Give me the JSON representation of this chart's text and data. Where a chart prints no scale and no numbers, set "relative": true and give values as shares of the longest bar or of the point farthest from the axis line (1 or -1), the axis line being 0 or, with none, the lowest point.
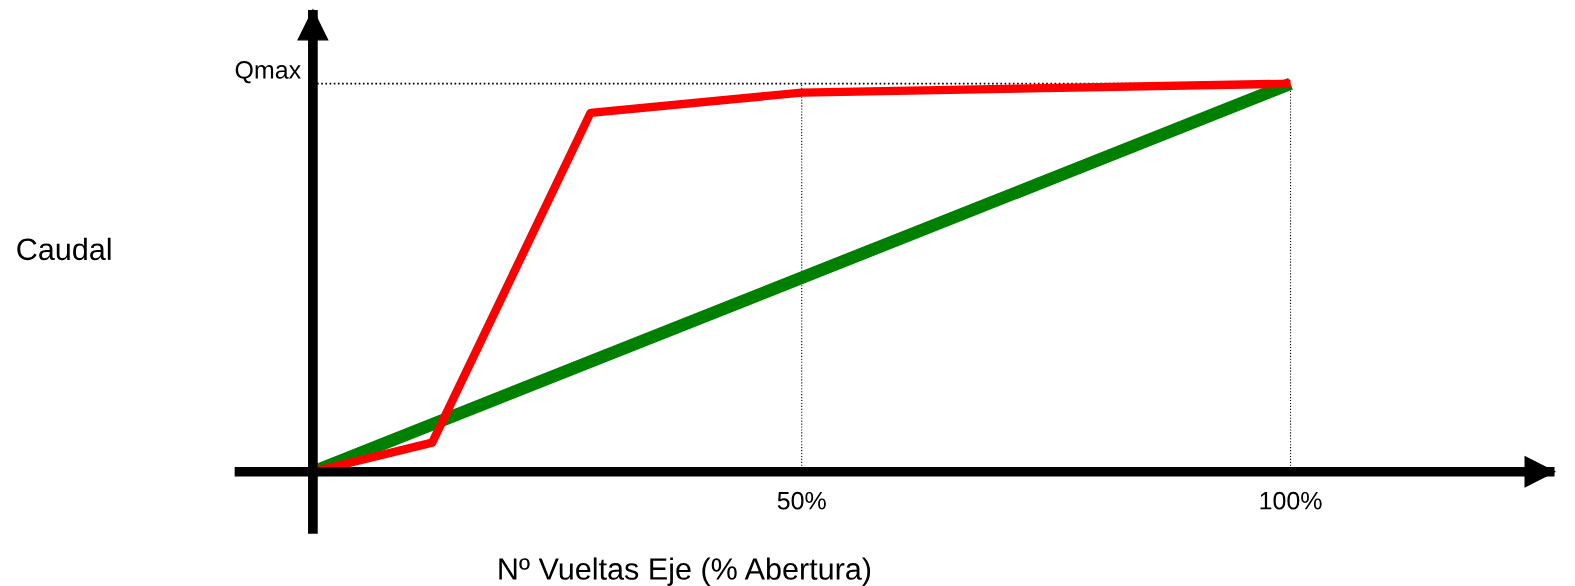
{
  "chart_data": {
    "type": "line",
    "relative": true,
    "xlabel": "Nº Vueltas Eje (% Abertura)",
    "ylabel": "Caudal",
    "xlim": [
      -8,
      127
    ],
    "xticks": [
      {
        "value": 50,
        "label": "50%"
      },
      {
        "value": 100,
        "label": "100%"
      }
    ],
    "series": [
      {
        "color": "#008000",
        "x": [
          0,
          100
        ],
        "values": [
          0,
          1
        ]
      },
      {
        "color": "#ff0000",
        "x": [
          0,
          12.2,
          28.4,
          50,
          100
        ],
        "values": [
          0,
          0.075,
          0.925,
          0.977,
          1
        ]
      }
    ],
    "ref_lines": [
      {
        "axis": "y",
        "value": 1,
        "label": "Qmax",
        "line_style": "dotted",
        "color": "#000000"
      },
      {
        "axis": "x",
        "value": 50,
        "line_style": "dotted",
        "color": "#000000"
      },
      {
        "axis": "x",
        "value": 100,
        "line_style": "dotted",
        "color": "#000000"
      }
    ],
    "grid": false,
    "legend": false,
    "marker": "none",
    "line_style": "solid"
  }
}
